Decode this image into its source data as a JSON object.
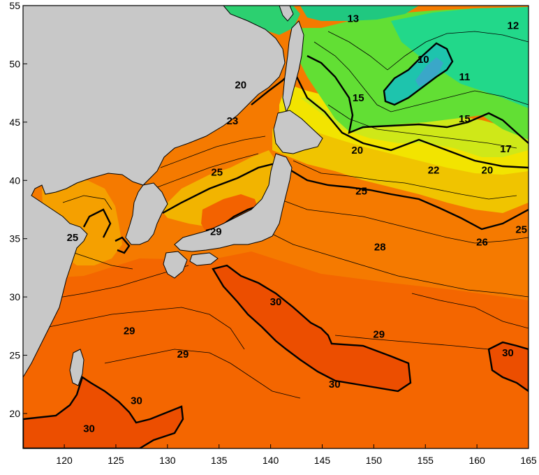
{
  "map": {
    "x_ticks": [
      {
        "value": 120,
        "label": "120"
      },
      {
        "value": 125,
        "label": "125"
      },
      {
        "value": 130,
        "label": "130"
      },
      {
        "value": 135,
        "label": "135"
      },
      {
        "value": 140,
        "label": "140"
      },
      {
        "value": 145,
        "label": "145"
      },
      {
        "value": 150,
        "label": "150"
      },
      {
        "value": 155,
        "label": "155"
      },
      {
        "value": 160,
        "label": "160"
      },
      {
        "value": 165,
        "label": "165"
      }
    ],
    "y_ticks": [
      {
        "value": 20,
        "label": "20"
      },
      {
        "value": 25,
        "label": "25"
      },
      {
        "value": 30,
        "label": "30"
      },
      {
        "value": 35,
        "label": "35"
      },
      {
        "value": 40,
        "label": "40"
      },
      {
        "value": 45,
        "label": "45"
      },
      {
        "value": 50,
        "label": "50"
      },
      {
        "value": 55,
        "label": "55"
      }
    ],
    "contour_labels": [
      {
        "text": "13",
        "lon": 148,
        "lat": 53.6
      },
      {
        "text": "12",
        "lon": 163.5,
        "lat": 53.0
      },
      {
        "text": "10",
        "lon": 154.8,
        "lat": 50.1
      },
      {
        "text": "11",
        "lon": 158.8,
        "lat": 48.6
      },
      {
        "text": "15",
        "lon": 148.5,
        "lat": 46.8
      },
      {
        "text": "15",
        "lon": 158.8,
        "lat": 45.0
      },
      {
        "text": "17",
        "lon": 162.8,
        "lat": 42.4
      },
      {
        "text": "20",
        "lon": 137.1,
        "lat": 47.9
      },
      {
        "text": "20",
        "lon": 148.4,
        "lat": 42.3
      },
      {
        "text": "20",
        "lon": 161.0,
        "lat": 40.6
      },
      {
        "text": "22",
        "lon": 155.8,
        "lat": 40.6
      },
      {
        "text": "23",
        "lon": 136.3,
        "lat": 44.8
      },
      {
        "text": "25",
        "lon": 134.8,
        "lat": 40.4
      },
      {
        "text": "25",
        "lon": 148.8,
        "lat": 38.8
      },
      {
        "text": "25",
        "lon": 164.3,
        "lat": 35.5
      },
      {
        "text": "25",
        "lon": 120.8,
        "lat": 34.8
      },
      {
        "text": "26",
        "lon": 160.5,
        "lat": 34.4
      },
      {
        "text": "28",
        "lon": 150.6,
        "lat": 34.0
      },
      {
        "text": "29",
        "lon": 134.7,
        "lat": 35.3
      },
      {
        "text": "29",
        "lon": 126.3,
        "lat": 26.8
      },
      {
        "text": "29",
        "lon": 131.5,
        "lat": 24.8
      },
      {
        "text": "29",
        "lon": 150.5,
        "lat": 26.5
      },
      {
        "text": "30",
        "lon": 140.5,
        "lat": 29.3
      },
      {
        "text": "30",
        "lon": 146.2,
        "lat": 22.2
      },
      {
        "text": "30",
        "lon": 127.0,
        "lat": 20.8
      },
      {
        "text": "30",
        "lon": 122.4,
        "lat": 18.4
      },
      {
        "text": "30",
        "lon": 163.0,
        "lat": 24.9
      }
    ],
    "colors": {
      "land": "#c8c8c8",
      "sst_10": "#22c8a8",
      "sst_12": "#28d890",
      "sst_15": "#40e040",
      "sst_17": "#80e030",
      "sst_20": "#d8e818",
      "sst_22": "#f0f000",
      "sst_23": "#f4d810",
      "sst_25": "#f0c000",
      "sst_26": "#f49a00",
      "sst_28": "#f68400",
      "sst_29": "#f46c00",
      "sst_30": "#ee5200"
    }
  }
}
